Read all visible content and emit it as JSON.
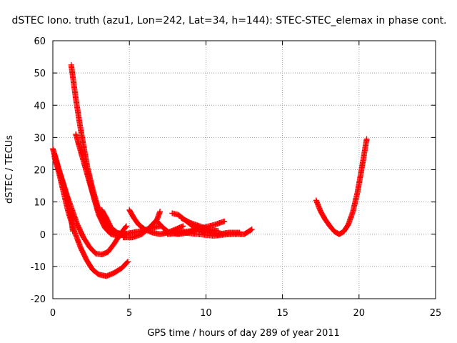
{
  "chart_data": {
    "type": "scatter",
    "title": "dSTEC Iono. truth (azu1, Lon=242, Lat=34, h=144): STEC-STEC_elemax in phase cont.",
    "xlabel": "GPS time / hours of day 289 of year 2011",
    "ylabel": "dSTEC  / TECUs",
    "xlim": [
      0,
      25
    ],
    "ylim": [
      -20,
      60
    ],
    "x_ticks": [
      0,
      5,
      10,
      15,
      20,
      25
    ],
    "y_ticks": [
      -20,
      -10,
      0,
      10,
      20,
      30,
      40,
      50,
      60
    ],
    "x_tick_labels": [
      "0",
      "5",
      "10",
      "15",
      "20",
      "25"
    ],
    "y_tick_labels": [
      "-20",
      "-10",
      "0",
      "10",
      "20",
      "30",
      "40",
      "50",
      "60"
    ],
    "grid": true,
    "marker": "plus",
    "color": "#ff0000",
    "series": [
      {
        "points": [
          [
            0.0,
            26.5
          ],
          [
            0.2,
            23
          ],
          [
            0.4,
            20
          ],
          [
            0.6,
            17
          ],
          [
            0.8,
            14
          ],
          [
            1.0,
            10
          ],
          [
            1.2,
            5
          ],
          [
            1.3,
            1
          ]
        ]
      },
      {
        "points": [
          [
            0.1,
            25
          ],
          [
            0.4,
            20
          ],
          [
            0.7,
            15
          ],
          [
            1.0,
            11
          ],
          [
            1.3,
            7
          ],
          [
            1.6,
            3
          ],
          [
            2.0,
            -1
          ],
          [
            2.4,
            -4
          ],
          [
            2.8,
            -6
          ],
          [
            3.2,
            -6.3
          ],
          [
            3.6,
            -5.5
          ],
          [
            4.0,
            -3
          ],
          [
            4.4,
            0
          ],
          [
            4.8,
            2.5
          ]
        ]
      },
      {
        "points": [
          [
            0.1,
            24
          ],
          [
            0.4,
            19
          ],
          [
            0.7,
            13
          ],
          [
            1.0,
            7
          ],
          [
            1.4,
            1
          ],
          [
            1.8,
            -4
          ],
          [
            2.2,
            -8
          ],
          [
            2.6,
            -11
          ],
          [
            3.0,
            -12.5
          ],
          [
            3.5,
            -13
          ],
          [
            4.0,
            -12
          ],
          [
            4.5,
            -10.5
          ],
          [
            4.9,
            -8.5
          ]
        ]
      },
      {
        "points": [
          [
            1.2,
            52.5
          ],
          [
            1.5,
            42
          ],
          [
            1.8,
            33
          ],
          [
            2.1,
            25
          ],
          [
            2.4,
            17
          ],
          [
            2.7,
            11
          ],
          [
            3.0,
            6
          ],
          [
            3.4,
            2
          ],
          [
            3.8,
            0
          ],
          [
            4.3,
            -0.5
          ],
          [
            4.8,
            0
          ]
        ]
      },
      {
        "points": [
          [
            1.5,
            31
          ],
          [
            1.8,
            26
          ],
          [
            2.1,
            21
          ],
          [
            2.4,
            16
          ],
          [
            2.7,
            11
          ],
          [
            3.0,
            7
          ],
          [
            3.4,
            3
          ],
          [
            3.9,
            1
          ],
          [
            4.4,
            0
          ]
        ]
      },
      {
        "points": [
          [
            2.3,
            20
          ],
          [
            2.6,
            14
          ],
          [
            2.9,
            9
          ],
          [
            3.2,
            5
          ],
          [
            3.6,
            2
          ],
          [
            4.0,
            0.5
          ],
          [
            4.5,
            0
          ]
        ]
      },
      {
        "points": [
          [
            3.2,
            7.5
          ],
          [
            3.5,
            5
          ],
          [
            3.8,
            2
          ],
          [
            4.2,
            0.5
          ],
          [
            4.6,
            0
          ],
          [
            5.2,
            0.5
          ],
          [
            5.8,
            1
          ],
          [
            6.5,
            2
          ],
          [
            7.0,
            2.5
          ]
        ]
      },
      {
        "points": [
          [
            5.0,
            7.5
          ],
          [
            5.3,
            5
          ],
          [
            5.6,
            3
          ],
          [
            6.0,
            1.5
          ],
          [
            6.5,
            0.5
          ],
          [
            7.0,
            0
          ],
          [
            7.5,
            0.5
          ],
          [
            8.0,
            1.5
          ],
          [
            8.5,
            2.5
          ]
        ]
      },
      {
        "points": [
          [
            4.6,
            -1
          ],
          [
            5.2,
            -1
          ],
          [
            5.8,
            0
          ],
          [
            6.3,
            2
          ],
          [
            6.8,
            4.5
          ],
          [
            7.0,
            7
          ]
        ]
      },
      {
        "points": [
          [
            6.8,
            4
          ],
          [
            7.2,
            2
          ],
          [
            7.6,
            0.5
          ],
          [
            8.2,
            0
          ],
          [
            8.8,
            0.5
          ],
          [
            9.5,
            1.5
          ]
        ]
      },
      {
        "points": [
          [
            7.8,
            6.5
          ],
          [
            8.2,
            6
          ],
          [
            8.6,
            4.5
          ],
          [
            9.0,
            3
          ],
          [
            9.5,
            1.5
          ],
          [
            10.0,
            0.5
          ],
          [
            10.8,
            0
          ],
          [
            11.5,
            0.5
          ],
          [
            12.2,
            0.5
          ]
        ]
      },
      {
        "points": [
          [
            8.4,
            5
          ],
          [
            9.0,
            3.5
          ],
          [
            9.6,
            2.5
          ],
          [
            10.2,
            1.5
          ],
          [
            10.8,
            1
          ]
        ]
      },
      {
        "points": [
          [
            8.2,
            0.5
          ],
          [
            9.0,
            1
          ],
          [
            9.8,
            2
          ],
          [
            10.6,
            3
          ],
          [
            11.2,
            4
          ]
        ]
      },
      {
        "points": [
          [
            7.5,
            0
          ],
          [
            8.5,
            0.5
          ],
          [
            9.5,
            0
          ],
          [
            10.5,
            -0.5
          ],
          [
            11.5,
            0
          ],
          [
            12.5,
            0
          ],
          [
            13.0,
            1.5
          ]
        ]
      },
      {
        "points": [
          [
            17.2,
            10.5
          ],
          [
            17.5,
            7
          ],
          [
            17.8,
            4.5
          ],
          [
            18.1,
            2.5
          ],
          [
            18.4,
            0.8
          ],
          [
            18.7,
            0
          ],
          [
            19.0,
            0.8
          ],
          [
            19.3,
            3
          ],
          [
            19.6,
            7
          ],
          [
            19.9,
            13
          ],
          [
            20.2,
            21
          ],
          [
            20.5,
            29.5
          ]
        ]
      }
    ]
  }
}
